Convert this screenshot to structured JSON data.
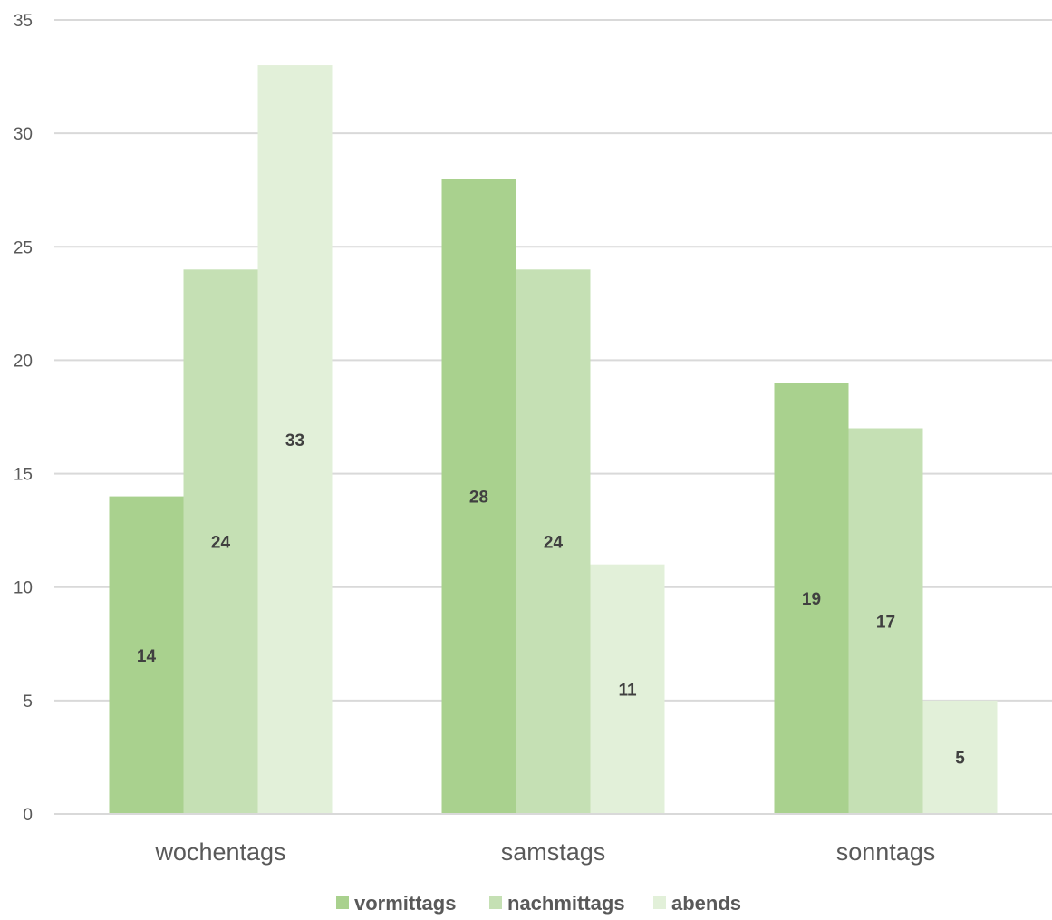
{
  "chart_data": {
    "type": "bar",
    "categories": [
      "wochentags",
      "samstags",
      "sonntags"
    ],
    "series": [
      {
        "name": "vormittags",
        "values": [
          14,
          28,
          19
        ],
        "color": "#a9d18e"
      },
      {
        "name": "nachmittags",
        "values": [
          24,
          24,
          17
        ],
        "color": "#c5e0b4"
      },
      {
        "name": "abends",
        "values": [
          33,
          11,
          5
        ],
        "color": "#e2f0d9"
      }
    ],
    "ylim": [
      0,
      35
    ],
    "yticks": [
      0,
      5,
      10,
      15,
      20,
      25,
      30,
      35
    ],
    "grid": true,
    "legend": "bottom",
    "gridColor": "#d9d9d9",
    "axisColor": "#d9d9d9"
  }
}
